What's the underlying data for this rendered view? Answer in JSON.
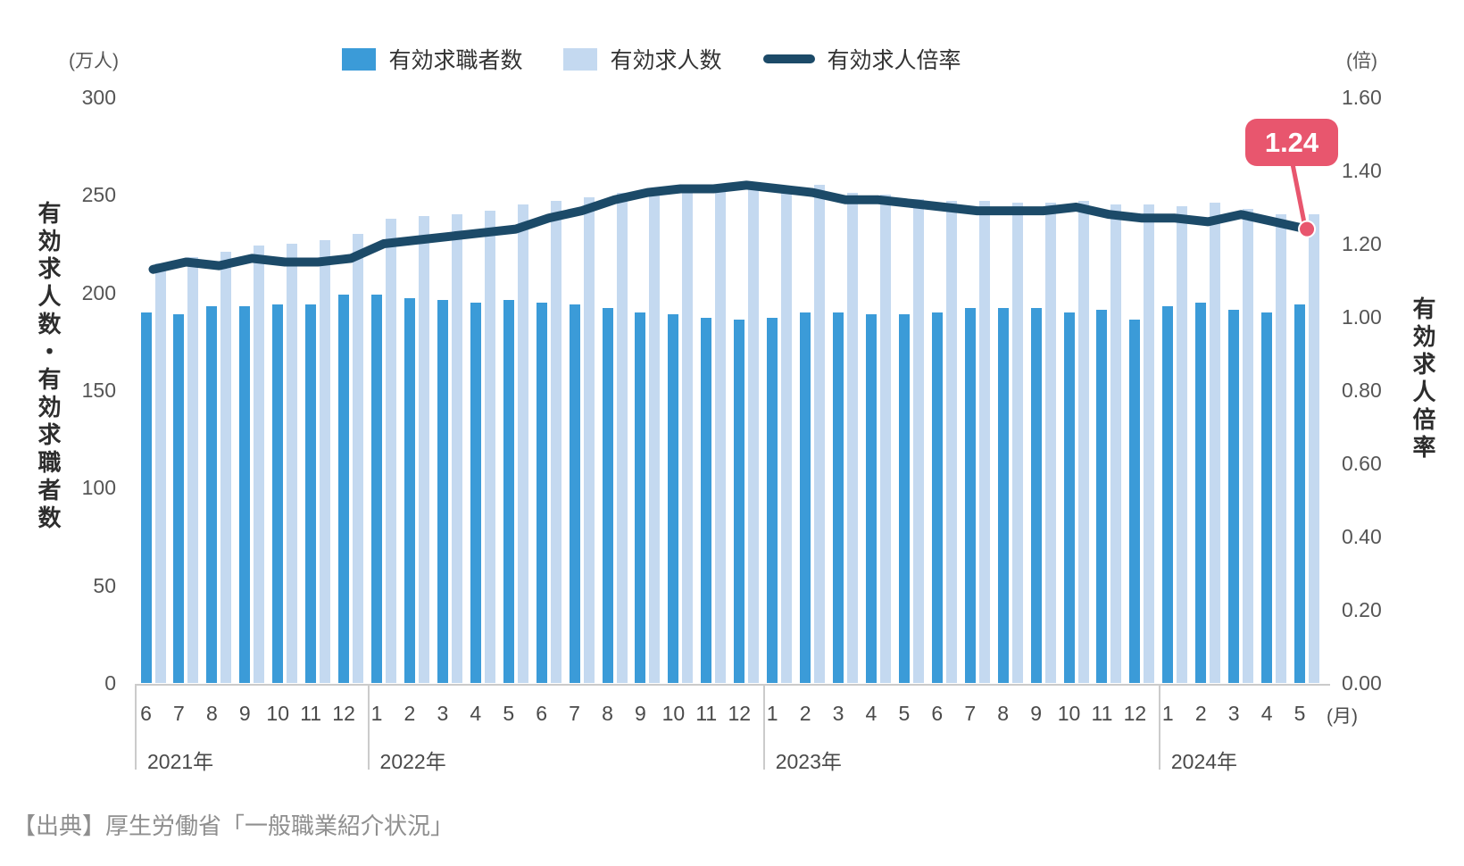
{
  "units": {
    "left": "(万人)",
    "right": "(倍)",
    "month": "(月)"
  },
  "axis_titles": {
    "left": "有効求人数・有効求職者数",
    "right": "有効求人倍率"
  },
  "legend": [
    {
      "label": "有効求職者数",
      "shape": "square",
      "color": "#3B9BD8"
    },
    {
      "label": "有効求人数",
      "shape": "square",
      "color": "#C4D9F0"
    },
    {
      "label": "有効求人倍率",
      "shape": "line",
      "color": "#1C4A68"
    }
  ],
  "annotation": {
    "label": "1.24",
    "color": "#E8566E"
  },
  "source": "【出典】厚生労働省「一般職業紹介状況」",
  "chart_data": {
    "type": "bar+line",
    "x_months": [
      "6",
      "7",
      "8",
      "9",
      "10",
      "11",
      "12",
      "1",
      "2",
      "3",
      "4",
      "5",
      "6",
      "7",
      "8",
      "9",
      "10",
      "11",
      "12",
      "1",
      "2",
      "3",
      "4",
      "5",
      "6",
      "7",
      "8",
      "9",
      "10",
      "11",
      "12",
      "1",
      "2",
      "3",
      "4",
      "5"
    ],
    "year_groups": [
      {
        "label": "2021年",
        "months": 7
      },
      {
        "label": "2022年",
        "months": 12
      },
      {
        "label": "2023年",
        "months": 12
      },
      {
        "label": "2024年",
        "months": 5
      }
    ],
    "left_axis": {
      "label": "有効求人数・有効求職者数",
      "unit": "万人",
      "ticks": [
        300,
        250,
        200,
        150,
        100,
        50,
        0
      ],
      "range": [
        0,
        300
      ]
    },
    "right_axis": {
      "label": "有効求人倍率",
      "unit": "倍",
      "ticks": [
        "1.60",
        "1.40",
        "1.20",
        "1.00",
        "0.80",
        "0.60",
        "0.40",
        "0.20",
        "0.00"
      ],
      "range": [
        0,
        1.6
      ]
    },
    "grid": false,
    "legend_position": "top",
    "series": [
      {
        "name": "有効求職者数",
        "type": "bar",
        "axis": "left",
        "color": "#3B9BD8",
        "values": [
          190,
          189,
          193,
          193,
          194,
          194,
          199,
          199,
          197,
          196,
          195,
          196,
          195,
          194,
          192,
          190,
          189,
          187,
          186,
          187,
          190,
          190,
          189,
          189,
          190,
          192,
          192,
          192,
          190,
          191,
          186,
          193,
          195,
          191,
          190,
          194
        ]
      },
      {
        "name": "有効求人数",
        "type": "bar",
        "axis": "left",
        "color": "#C4D9F0",
        "values": [
          215,
          218,
          221,
          224,
          225,
          227,
          230,
          238,
          239,
          240,
          242,
          245,
          247,
          249,
          251,
          252,
          254,
          253,
          254,
          252,
          255,
          251,
          250,
          248,
          247,
          247,
          246,
          246,
          247,
          245,
          245,
          244,
          246,
          243,
          240,
          240
        ]
      },
      {
        "name": "有効求人倍率",
        "type": "line",
        "axis": "right",
        "color": "#1C4A68",
        "values": [
          1.13,
          1.15,
          1.14,
          1.16,
          1.15,
          1.15,
          1.16,
          1.2,
          1.21,
          1.22,
          1.23,
          1.24,
          1.27,
          1.29,
          1.32,
          1.34,
          1.35,
          1.35,
          1.36,
          1.35,
          1.34,
          1.32,
          1.32,
          1.31,
          1.3,
          1.29,
          1.29,
          1.29,
          1.3,
          1.28,
          1.27,
          1.27,
          1.26,
          1.28,
          1.26,
          1.24
        ]
      }
    ],
    "annotation_last_value": "1.24"
  }
}
